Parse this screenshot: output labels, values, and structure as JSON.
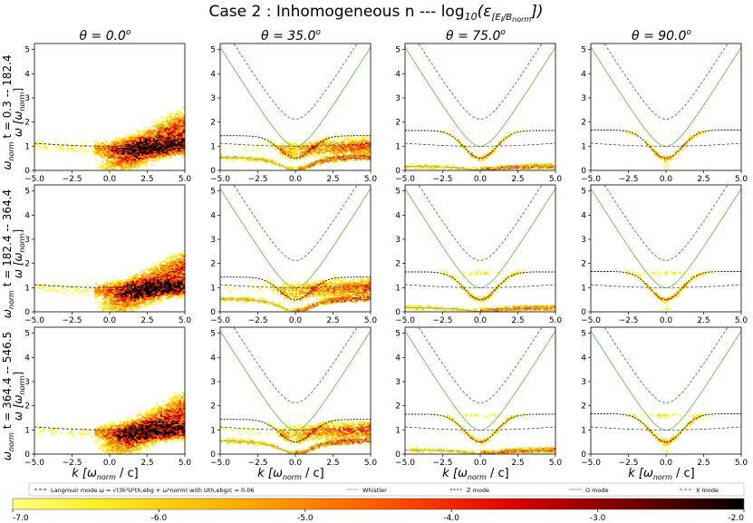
{
  "chart_data": {
    "type": "heatmap",
    "title": "Case 2 : Inhomogeneous n --- log",
    "title_sub": "10",
    "title_eps": "(ε",
    "title_eps_sub": "[E",
    "title_eps_sub_i": "l",
    "title_eps_sub_rest": "/B",
    "title_eps_sub_norm": "norm",
    "title_close": "])",
    "column_titles": [
      "θ = 0.0",
      "θ = 35.0",
      "θ = 75.0",
      "θ = 90.0"
    ],
    "column_title_sup": "o",
    "theta_deg": [
      0.0,
      35.0,
      75.0,
      90.0
    ],
    "row_labels": [
      {
        "pre": "ω",
        "sub": "norm",
        "post": " t = 0.3 -- 182.4"
      },
      {
        "pre": "ω",
        "sub": "norm",
        "post": " t = 182.4 -- 364.4"
      },
      {
        "pre": "ω",
        "sub": "norm",
        "post": " t = 364.4 -- 546.5"
      }
    ],
    "ylabel": {
      "pre": "ω [ω",
      "sub": "norm",
      "post": "]"
    },
    "xlabel": {
      "pre": "k [ω",
      "sub": "norm",
      "post": " / c]"
    },
    "xlim": [
      -5.0,
      5.0
    ],
    "ylim": [
      0.0,
      5.25
    ],
    "x_ticks": [
      -5.0,
      -2.5,
      0.0,
      2.5,
      5.0
    ],
    "x_tick_labels": [
      "−5.0",
      "−2.5",
      "0.0",
      "2.5",
      "5.0"
    ],
    "y_ticks": [
      0,
      1,
      2,
      3,
      4,
      5
    ],
    "y_tick_labels": [
      "0",
      "1",
      "2",
      "3",
      "4",
      "5"
    ],
    "curves": {
      "langmuir_u_th": 0.06,
      "omega_uh": 1.12,
      "omega_c": 0.5
    },
    "legend": [
      {
        "key": "langmuir",
        "label": "Langmuir mode ω = √(3k²U²th,ebg + ω²norm) with Uth,ebg/c = 0.06",
        "color": "#333333",
        "dash": "3,2"
      },
      {
        "key": "whistler",
        "label": "Whistler",
        "color": "#8bbf7a",
        "dash": "none"
      },
      {
        "key": "z",
        "label": "Z mode",
        "color": "#111111",
        "dash": "2,1.5"
      },
      {
        "key": "o",
        "label": "O mode",
        "color": "#6cbf4a",
        "dash": "none"
      },
      {
        "key": "x",
        "label": "X mode",
        "color": "#3a8f2a",
        "dash": "3,2"
      }
    ],
    "colorbar": {
      "min": -7.0,
      "max": -2.0,
      "ticks": [
        -7.0,
        -6.0,
        -5.0,
        -4.0,
        -3.0,
        -2.0
      ],
      "tick_labels": [
        "-7.0",
        "-6.0",
        "-5.0",
        "-4.0",
        "-3.0",
        "-2.0"
      ],
      "colormap": "hot_r"
    }
  }
}
